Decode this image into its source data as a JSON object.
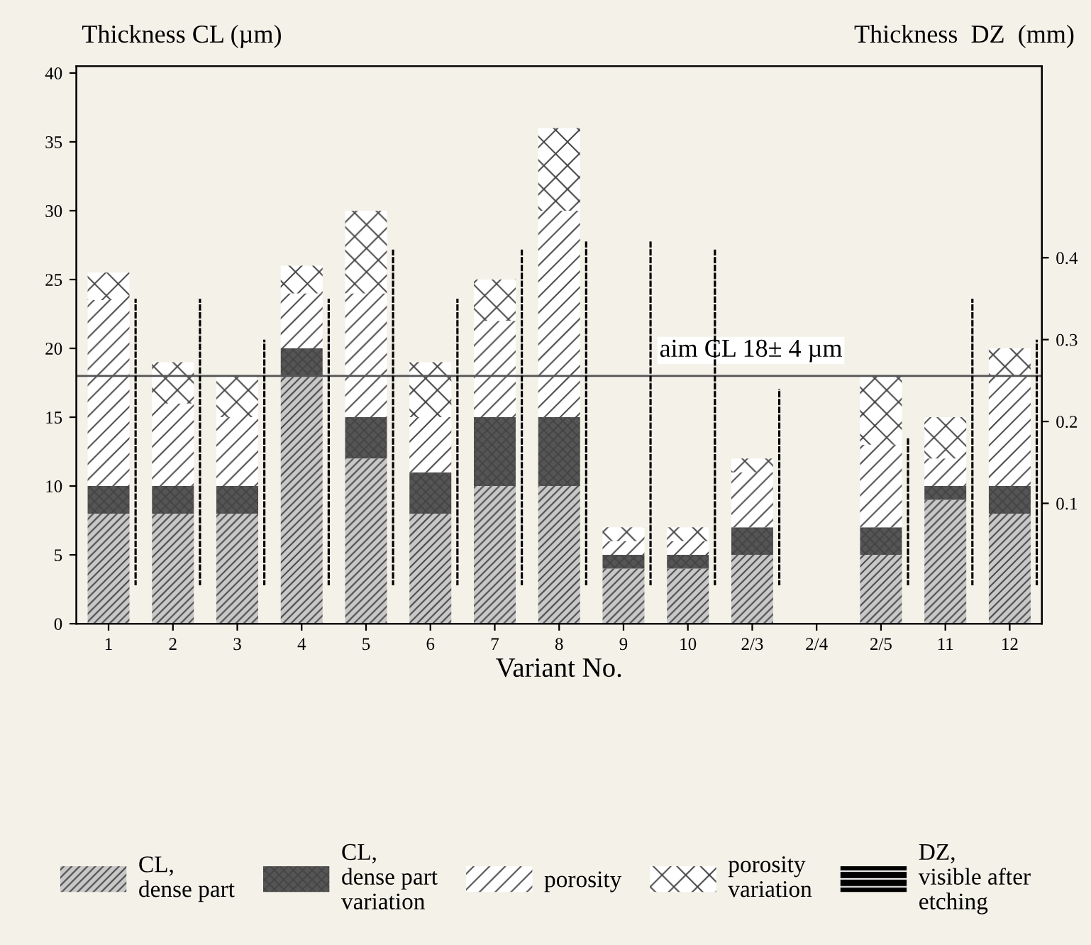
{
  "chart_data": {
    "type": "bar",
    "stacked": true,
    "xlabel": "Variant No.",
    "ylabel": "Thickness CL (µm)",
    "y2label": "Thickness  DZ  (mm)",
    "categories": [
      "1",
      "2",
      "3",
      "4",
      "5",
      "6",
      "7",
      "8",
      "9",
      "10",
      "2/3",
      "2/4",
      "2/5",
      "11",
      "12"
    ],
    "series": [
      {
        "name": "CL,\ndense part",
        "color": "#c8c8c8",
        "values": [
          8,
          8,
          8,
          18,
          12,
          8,
          10,
          10,
          4,
          4,
          5,
          null,
          5,
          9,
          8
        ]
      },
      {
        "name": "CL,\ndense part\nvariation",
        "color": "#555555",
        "values": [
          2,
          2,
          2,
          2,
          3,
          3,
          5,
          5,
          1,
          1,
          2,
          null,
          2,
          1,
          2
        ]
      },
      {
        "name": "porosity",
        "color": "#ffffff",
        "values": [
          13.5,
          6,
          5,
          4,
          9,
          4,
          7,
          15,
          1,
          1,
          4,
          null,
          6,
          2,
          8
        ]
      },
      {
        "name": "porosity\nvariation",
        "color": "#ffffff",
        "values": [
          2,
          3,
          3,
          2,
          6,
          4,
          3,
          6,
          1,
          1,
          1,
          null,
          5,
          3,
          2
        ]
      },
      {
        "name": "DZ,\nvisible after\netching",
        "color": "#000000",
        "axis": "y2",
        "line_style": "dashed",
        "values": [
          0.35,
          0.35,
          0.3,
          0.35,
          0.41,
          0.35,
          0.41,
          0.42,
          0.42,
          0.41,
          0.24,
          null,
          0.18,
          0.35,
          0.3
        ]
      }
    ],
    "ylim": [
      0,
      40.5
    ],
    "yticks": [
      0,
      5,
      10,
      15,
      20,
      25,
      30,
      35,
      40
    ],
    "y2lim": [
      -0.047,
      0.634
    ],
    "y2ticks": [
      0.1,
      0.2,
      0.3,
      0.4
    ],
    "ref_lines": [
      {
        "axis": "y",
        "value": 18,
        "label": "aim CL 18± 4 µm",
        "color": "#555555"
      }
    ],
    "legend": "bottom",
    "grid": false
  }
}
